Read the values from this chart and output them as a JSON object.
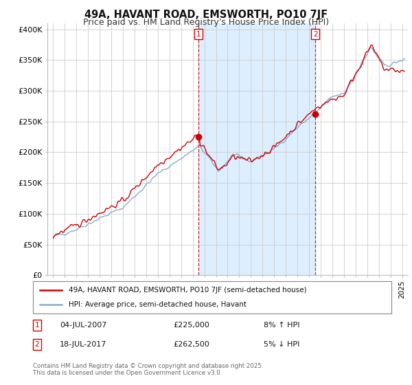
{
  "title": "49A, HAVANT ROAD, EMSWORTH, PO10 7JF",
  "subtitle": "Price paid vs. HM Land Registry's House Price Index (HPI)",
  "ylabel_ticks": [
    "£0",
    "£50K",
    "£100K",
    "£150K",
    "£200K",
    "£250K",
    "£300K",
    "£350K",
    "£400K"
  ],
  "ytick_values": [
    0,
    50000,
    100000,
    150000,
    200000,
    250000,
    300000,
    350000,
    400000
  ],
  "ylim": [
    0,
    410000
  ],
  "xlim_start": 1994.5,
  "xlim_end": 2025.5,
  "sale1": {
    "date_x": 2007.5,
    "price": 225000,
    "label": "1",
    "text": "04-JUL-2007",
    "amount": "£225,000",
    "note": "8% ↑ HPI"
  },
  "sale2": {
    "date_x": 2017.55,
    "price": 262500,
    "label": "2",
    "text": "18-JUL-2017",
    "amount": "£262,500",
    "note": "5% ↓ HPI"
  },
  "legend_line1": "49A, HAVANT ROAD, EMSWORTH, PO10 7JF (semi-detached house)",
  "legend_line2": "HPI: Average price, semi-detached house, Havant",
  "footer": "Contains HM Land Registry data © Crown copyright and database right 2025.\nThis data is licensed under the Open Government Licence v3.0.",
  "line_color_property": "#cc0000",
  "line_color_hpi": "#88aacc",
  "shade_color": "#ddeeff",
  "background_color": "#ffffff",
  "grid_color": "#cccccc",
  "title_fontsize": 10.5,
  "subtitle_fontsize": 9,
  "tick_fontsize": 8
}
